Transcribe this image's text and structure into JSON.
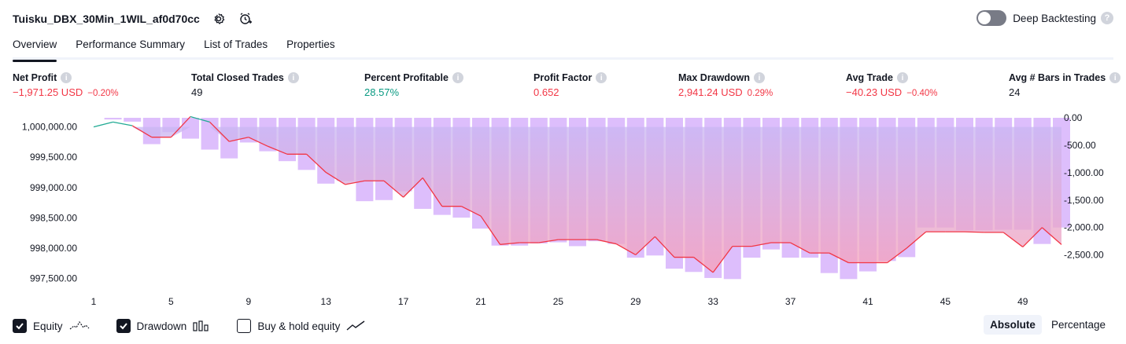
{
  "header": {
    "strategy_name": "Tuisku_DBX_30Min_1WIL_af0d70cc",
    "settings_icon": "gear-icon",
    "alert_icon": "add-alert-icon"
  },
  "deep_backtesting": {
    "label": "Deep Backtesting",
    "enabled": false
  },
  "tabs": [
    {
      "label": "Overview",
      "active": true
    },
    {
      "label": "Performance Summary",
      "active": false
    },
    {
      "label": "List of Trades",
      "active": false
    },
    {
      "label": "Properties",
      "active": false
    }
  ],
  "metrics": {
    "net_profit": {
      "label": "Net Profit",
      "value": "−1,971.25 USD",
      "sub": "−0.20%"
    },
    "total_closed_trades": {
      "label": "Total Closed Trades",
      "value": "49"
    },
    "percent_profitable": {
      "label": "Percent Profitable",
      "value": "28.57%"
    },
    "profit_factor": {
      "label": "Profit Factor",
      "value": "0.652"
    },
    "max_drawdown": {
      "label": "Max Drawdown",
      "value": "2,941.24 USD",
      "sub": "0.29%"
    },
    "avg_trade": {
      "label": "Avg Trade",
      "value": "−40.23 USD",
      "sub": "−0.40%"
    },
    "avg_bars": {
      "label": "Avg # Bars in Trades",
      "value": "24"
    }
  },
  "chart_data": {
    "type": "line",
    "x_ticks": [
      "1",
      "5",
      "9",
      "13",
      "17",
      "21",
      "25",
      "29",
      "33",
      "37",
      "41",
      "45",
      "49"
    ],
    "left_axis": {
      "ticks": [
        "1,000,000.00",
        "999,500.00",
        "999,000.00",
        "998,500.00",
        "998,000.00",
        "997,500.00"
      ],
      "range": [
        997300,
        1000150
      ]
    },
    "right_axis": {
      "ticks": [
        "0.00",
        "-500.00",
        "-1,000.00",
        "-1,500.00",
        "-2,000.00",
        "-2,500.00"
      ],
      "range": [
        -3150,
        0
      ]
    },
    "series": [
      {
        "type": "line",
        "values": [
          1000000,
          1000080,
          1000020,
          999830,
          999830,
          1000170,
          1000080,
          999760,
          999830,
          999680,
          999550,
          999550,
          999250,
          999050,
          999110,
          999110,
          998840,
          999160,
          998690,
          998690,
          998530,
          998060,
          998090,
          998090,
          998140,
          998140,
          998140,
          998070,
          997890,
          998190,
          997850,
          997850,
          997600,
          998030,
          998030,
          998090,
          998090,
          997920,
          997920,
          997760,
          997760,
          997760,
          998000,
          998270,
          998270,
          998270,
          998260,
          998260,
          998020,
          998340,
          998060
        ]
      },
      {
        "type": "bar",
        "values": [
          0,
          -30,
          -70,
          -480,
          -260,
          -380,
          -580,
          -740,
          -450,
          -610,
          -790,
          -950,
          -1200,
          -1150,
          -1520,
          -1500,
          -1340,
          -1660,
          -1770,
          -1820,
          -2020,
          -2330,
          -2330,
          -2290,
          -2270,
          -2340,
          -2250,
          -2300,
          -2550,
          -2510,
          -2750,
          -2810,
          -2920,
          -2940,
          -2550,
          -2400,
          -2550,
          -2550,
          -2830,
          -2940,
          -2800,
          -2610,
          -2540,
          -2000,
          -2000,
          -2050,
          -2050,
          -2040,
          -2040,
          -2300,
          -2000
        ]
      }
    ]
  },
  "legend": {
    "equity": {
      "label": "Equity",
      "checked": true,
      "icon": "line-chart-icon"
    },
    "drawdown": {
      "label": "Drawdown",
      "checked": true,
      "icon": "bar-chart-icon"
    },
    "buy_hold": {
      "label": "Buy & hold equity",
      "checked": false,
      "icon": "trend-line-icon"
    }
  },
  "modes": {
    "absolute": "Absolute",
    "percentage": "Percentage",
    "selected": "Absolute"
  },
  "colors": {
    "equity_up": "#22ab94",
    "equity_down": "#f23645",
    "drawdown": "#d7b3fb",
    "area_fill_top": "#c9b6f3",
    "area_fill_bottom": "#f7a0b8"
  }
}
